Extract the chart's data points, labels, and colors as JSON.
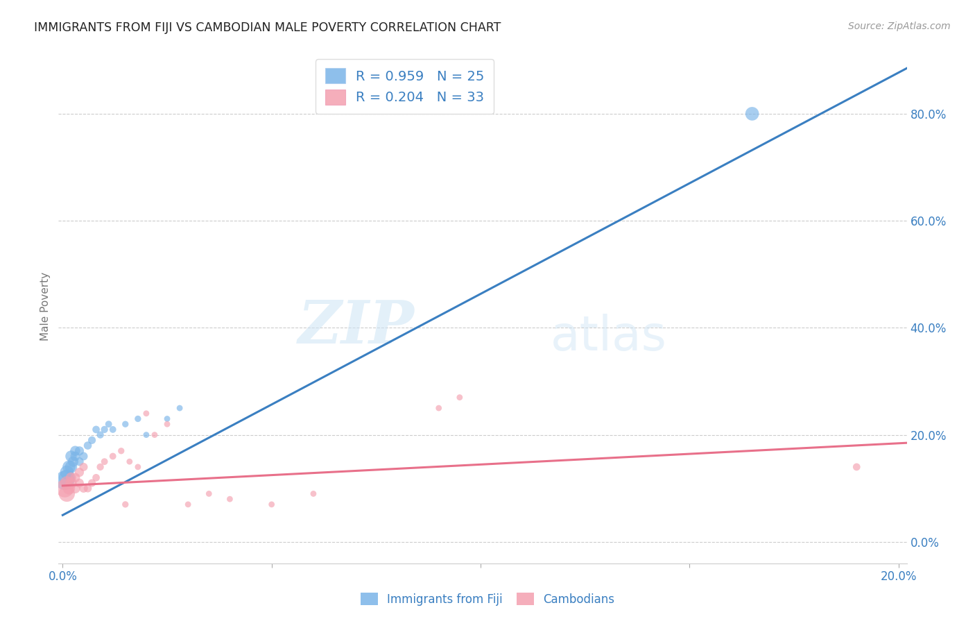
{
  "title": "IMMIGRANTS FROM FIJI VS CAMBODIAN MALE POVERTY CORRELATION CHART",
  "source": "Source: ZipAtlas.com",
  "ylabel": "Male Poverty",
  "xlim": [
    -0.001,
    0.202
  ],
  "ylim": [
    -0.04,
    0.92
  ],
  "right_yticks": [
    0.0,
    0.2,
    0.4,
    0.6,
    0.8
  ],
  "right_yticklabels": [
    "0.0%",
    "20.0%",
    "40.0%",
    "60.0%",
    "80.0%"
  ],
  "xticks": [
    0.0,
    0.05,
    0.1,
    0.15,
    0.2
  ],
  "xticklabels": [
    "0.0%",
    "",
    "",
    "",
    "20.0%"
  ],
  "watermark_zip": "ZIP",
  "watermark_atlas": "atlas",
  "fiji_color": "#7ab4e8",
  "cambodian_color": "#f4a0b0",
  "fiji_line_color": "#3a7fc1",
  "cambodian_line_color": "#e8708a",
  "tick_color": "#3a7fc1",
  "legend_fiji_R": "R = 0.959",
  "legend_fiji_N": "N = 25",
  "legend_cambodian_R": "R = 0.204",
  "legend_cambodian_N": "N = 33",
  "fiji_line_x0": 0.0,
  "fiji_line_y0": 0.05,
  "fiji_line_x1": 0.202,
  "fiji_line_y1": 0.885,
  "cambodian_line_x0": 0.0,
  "cambodian_line_y0": 0.105,
  "cambodian_line_x1": 0.202,
  "cambodian_line_y1": 0.185,
  "fiji_scatter_x": [
    0.0005,
    0.001,
    0.001,
    0.0015,
    0.002,
    0.002,
    0.0025,
    0.003,
    0.003,
    0.004,
    0.004,
    0.005,
    0.006,
    0.007,
    0.008,
    0.009,
    0.01,
    0.011,
    0.012,
    0.015,
    0.018,
    0.02,
    0.025,
    0.028,
    0.165
  ],
  "fiji_scatter_y": [
    0.115,
    0.12,
    0.13,
    0.14,
    0.14,
    0.16,
    0.15,
    0.17,
    0.16,
    0.17,
    0.15,
    0.16,
    0.18,
    0.19,
    0.21,
    0.2,
    0.21,
    0.22,
    0.21,
    0.22,
    0.23,
    0.2,
    0.23,
    0.25,
    0.8
  ],
  "fiji_scatter_size": [
    400,
    280,
    200,
    180,
    160,
    140,
    120,
    110,
    100,
    90,
    80,
    75,
    70,
    65,
    60,
    55,
    55,
    50,
    50,
    45,
    45,
    40,
    40,
    40,
    200
  ],
  "cambodian_scatter_x": [
    0.0005,
    0.001,
    0.001,
    0.0015,
    0.002,
    0.002,
    0.003,
    0.003,
    0.004,
    0.004,
    0.005,
    0.005,
    0.006,
    0.007,
    0.008,
    0.009,
    0.01,
    0.012,
    0.014,
    0.015,
    0.016,
    0.018,
    0.02,
    0.022,
    0.025,
    0.03,
    0.035,
    0.04,
    0.05,
    0.06,
    0.09,
    0.095,
    0.19
  ],
  "cambodian_scatter_y": [
    0.1,
    0.09,
    0.11,
    0.1,
    0.11,
    0.12,
    0.1,
    0.12,
    0.13,
    0.11,
    0.1,
    0.14,
    0.1,
    0.11,
    0.12,
    0.14,
    0.15,
    0.16,
    0.17,
    0.07,
    0.15,
    0.14,
    0.24,
    0.2,
    0.22,
    0.07,
    0.09,
    0.08,
    0.07,
    0.09,
    0.25,
    0.27,
    0.14
  ],
  "cambodian_scatter_size": [
    350,
    280,
    200,
    160,
    140,
    120,
    110,
    100,
    90,
    85,
    80,
    75,
    70,
    65,
    60,
    55,
    50,
    50,
    45,
    45,
    40,
    40,
    40,
    40,
    40,
    40,
    40,
    40,
    40,
    40,
    40,
    40,
    60
  ]
}
